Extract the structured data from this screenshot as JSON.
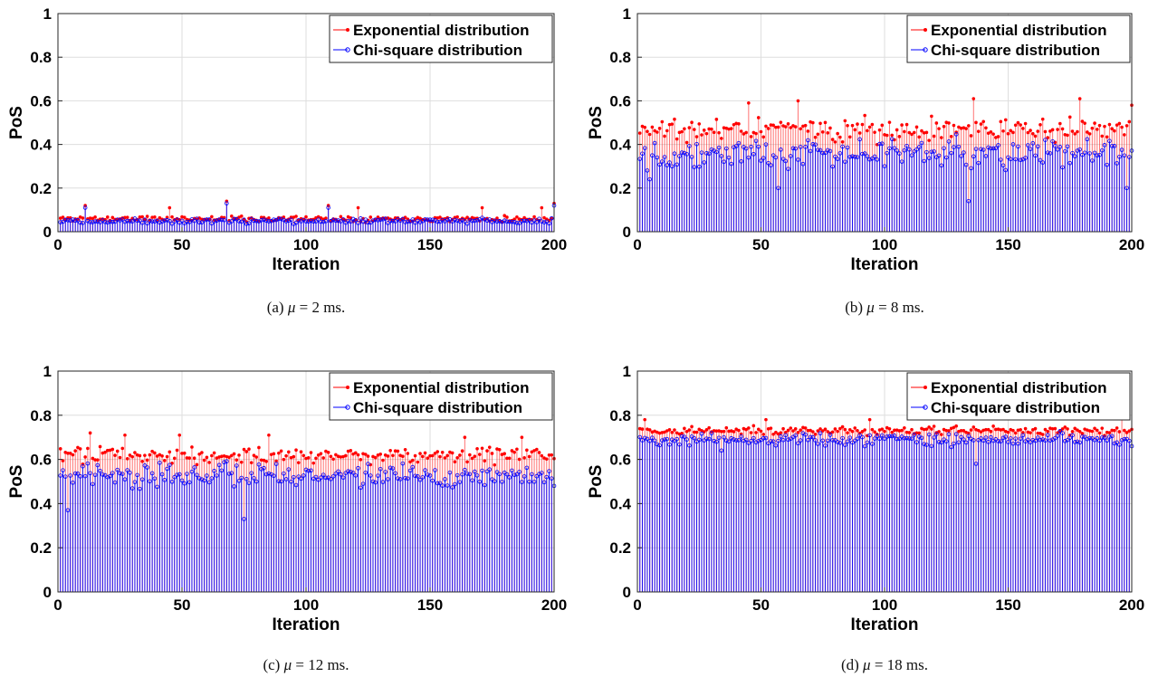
{
  "chart_data": [
    {
      "type": "stem",
      "caption": "(a) μ = 2 ms.",
      "caption_parts": {
        "prefix": "(a) ",
        "symbol": "μ",
        "rest": " = 2 ms."
      },
      "xlabel": "Iteration",
      "ylabel": "PoS",
      "xlim": [
        0,
        200
      ],
      "ylim": [
        0,
        1
      ],
      "xticks": [
        "0",
        "50",
        "100",
        "150",
        "200"
      ],
      "yticks": [
        "0",
        "0.2",
        "0.4",
        "0.6",
        "0.8",
        "1"
      ],
      "grid": true,
      "legend_position": "top-right",
      "series": [
        {
          "name": "Exponential distribution",
          "color": "#ff0000",
          "marker": "dot",
          "mean": 0.06,
          "spread": 0.012,
          "spikes": [
            [
              11,
              0.12
            ],
            [
              45,
              0.11
            ],
            [
              68,
              0.14
            ],
            [
              109,
              0.12
            ],
            [
              121,
              0.11
            ],
            [
              171,
              0.11
            ],
            [
              195,
              0.11
            ],
            [
              200,
              0.13
            ]
          ],
          "seed": 11
        },
        {
          "name": "Chi-square distribution",
          "color": "#0000ff",
          "marker": "circle",
          "mean": 0.05,
          "spread": 0.011,
          "spikes": [
            [
              11,
              0.11
            ],
            [
              68,
              0.13
            ],
            [
              109,
              0.11
            ],
            [
              200,
              0.12
            ]
          ],
          "seed": 12
        }
      ]
    },
    {
      "type": "stem",
      "caption": "(b) μ = 8 ms.",
      "caption_parts": {
        "prefix": "(b) ",
        "symbol": "μ",
        "rest": " = 8 ms."
      },
      "xlabel": "Iteration",
      "ylabel": "PoS",
      "xlim": [
        0,
        200
      ],
      "ylim": [
        0,
        1
      ],
      "xticks": [
        "0",
        "50",
        "100",
        "150",
        "200"
      ],
      "yticks": [
        "0",
        "0.2",
        "0.4",
        "0.6",
        "0.8",
        "1"
      ],
      "grid": true,
      "legend_position": "top-right",
      "series": [
        {
          "name": "Exponential distribution",
          "color": "#ff0000",
          "marker": "dot",
          "mean": 0.47,
          "spread": 0.05,
          "spikes": [
            [
              45,
              0.59
            ],
            [
              65,
              0.6
            ],
            [
              136,
              0.61
            ],
            [
              179,
              0.61
            ],
            [
              200,
              0.58
            ]
          ],
          "seed": 21
        },
        {
          "name": "Chi-square distribution",
          "color": "#0000ff",
          "marker": "circle",
          "mean": 0.36,
          "spread": 0.06,
          "spikes": [
            [
              5,
              0.24
            ],
            [
              57,
              0.2
            ],
            [
              134,
              0.14
            ],
            [
              198,
              0.2
            ]
          ],
          "seed": 22
        }
      ]
    },
    {
      "type": "stem",
      "caption": "(c) μ = 12 ms.",
      "caption_parts": {
        "prefix": "(c) ",
        "symbol": "μ",
        "rest": " = 12 ms."
      },
      "xlabel": "Iteration",
      "ylabel": "PoS",
      "xlim": [
        0,
        200
      ],
      "ylim": [
        0,
        1
      ],
      "xticks": [
        "0",
        "50",
        "100",
        "150",
        "200"
      ],
      "yticks": [
        "0",
        "0.2",
        "0.4",
        "0.6",
        "0.8",
        "1"
      ],
      "grid": true,
      "legend_position": "top-right",
      "series": [
        {
          "name": "Exponential distribution",
          "color": "#ff0000",
          "marker": "dot",
          "mean": 0.62,
          "spread": 0.035,
          "spikes": [
            [
              13,
              0.72
            ],
            [
              27,
              0.71
            ],
            [
              49,
              0.71
            ],
            [
              85,
              0.71
            ],
            [
              164,
              0.7
            ],
            [
              187,
              0.7
            ]
          ],
          "seed": 31
        },
        {
          "name": "Chi-square distribution",
          "color": "#0000ff",
          "marker": "circle",
          "mean": 0.53,
          "spread": 0.05,
          "spikes": [
            [
              4,
              0.37
            ],
            [
              75,
              0.33
            ],
            [
              200,
              0.48
            ]
          ],
          "seed": 32
        }
      ]
    },
    {
      "type": "stem",
      "caption": "(d) μ = 18 ms.",
      "caption_parts": {
        "prefix": "(d) ",
        "symbol": "μ",
        "rest": " = 18 ms."
      },
      "xlabel": "Iteration",
      "ylabel": "PoS",
      "xlim": [
        0,
        200
      ],
      "ylim": [
        0,
        1
      ],
      "xticks": [
        "0",
        "50",
        "100",
        "150",
        "200"
      ],
      "yticks": [
        "0",
        "0.2",
        "0.4",
        "0.6",
        "0.8",
        "1"
      ],
      "grid": true,
      "legend_position": "top-right",
      "series": [
        {
          "name": "Exponential distribution",
          "color": "#ff0000",
          "marker": "dot",
          "mean": 0.73,
          "spread": 0.018,
          "spikes": [
            [
              3,
              0.78
            ],
            [
              52,
              0.78
            ],
            [
              94,
              0.78
            ],
            [
              196,
              0.79
            ]
          ],
          "seed": 41
        },
        {
          "name": "Chi-square distribution",
          "color": "#0000ff",
          "marker": "circle",
          "mean": 0.69,
          "spread": 0.025,
          "spikes": [
            [
              34,
              0.64
            ],
            [
              137,
              0.58
            ],
            [
              200,
              0.66
            ]
          ],
          "seed": 42
        }
      ]
    }
  ]
}
